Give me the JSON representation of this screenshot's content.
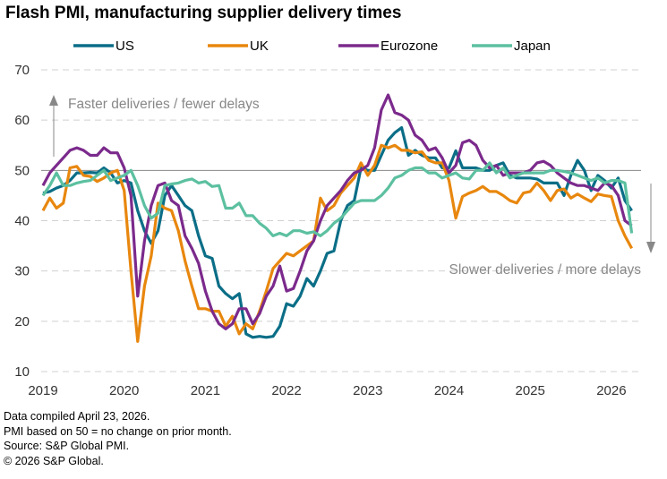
{
  "title": "Flash PMI, manufacturing supplier delivery times",
  "notes": [
    "Data compiled April 23, 2026.",
    "PMI based on 50 = no change on prior month.",
    "Source: S&P Global PMI.",
    "© 2026 S&P Global."
  ],
  "chart_data": {
    "type": "line",
    "title": "Flash PMI, manufacturing supplier delivery times",
    "x_start": "2019-01",
    "frequency": "monthly",
    "xticks": [
      "2019",
      "2020",
      "2021",
      "2022",
      "2023",
      "2024",
      "2025",
      "2026"
    ],
    "yticks": [
      10,
      20,
      30,
      40,
      50,
      60,
      70
    ],
    "ylim": [
      10,
      70
    ],
    "reference_line": 50,
    "annotations": {
      "up": "Faster deliveries / fewer delays",
      "down": "Slower deliveries / more delays"
    },
    "legend_position": "top",
    "series": [
      {
        "name": "US",
        "color": "#0b6e87",
        "values": [
          45.5,
          45.8,
          46.5,
          47,
          48,
          49.5,
          49.5,
          49.6,
          49.5,
          50.5,
          49.5,
          47.5,
          48,
          47.5,
          42,
          38,
          35.5,
          38,
          45,
          47,
          45,
          43,
          42,
          37,
          33,
          32.5,
          27,
          25.5,
          24.5,
          25.5,
          17.5,
          16.8,
          17,
          16.8,
          17,
          19,
          23.5,
          23,
          25,
          28.5,
          27,
          30,
          33.5,
          34,
          40,
          43,
          44,
          50.5,
          50,
          50,
          53,
          56,
          57.5,
          58.5,
          53,
          54,
          53,
          52.5,
          52.5,
          50.5,
          50.5,
          53.9,
          50.5,
          50.5,
          50.5,
          50,
          50,
          51,
          51.5,
          49,
          48.5,
          48.5,
          48.5,
          48.3,
          47.5,
          47.5,
          47.5,
          45,
          49,
          52,
          50,
          46,
          49,
          48,
          46.5,
          48.5,
          44,
          42
        ]
      },
      {
        "name": "UK",
        "color": "#e8870e",
        "values": [
          42,
          44.5,
          42.5,
          43.5,
          50.5,
          50.8,
          49,
          48.8,
          47.8,
          48.5,
          49.5,
          50,
          46,
          30,
          16,
          27,
          33,
          43.5,
          42.5,
          42,
          38,
          32,
          27,
          22.5,
          22.5,
          22,
          22,
          19,
          21,
          17.5,
          19.5,
          18.5,
          22,
          26,
          30.5,
          32,
          33.5,
          33,
          34,
          35,
          36,
          44.5,
          42,
          43,
          45.5,
          47,
          48.5,
          51.5,
          49,
          51,
          55,
          54.5,
          55,
          54,
          54,
          53.5,
          53.7,
          52,
          51.5,
          51.5,
          48,
          40.5,
          44.8,
          45.5,
          46,
          46.8,
          45.8,
          45.8,
          45,
          44,
          43.5,
          45.5,
          45.8,
          47.5,
          46,
          44,
          46,
          46.3,
          44.5,
          45.3,
          44.5,
          43.8,
          45.3,
          45,
          44.8,
          40,
          37,
          34.5
        ]
      },
      {
        "name": "Eurozone",
        "color": "#7b2a8c",
        "values": [
          47,
          49.5,
          51,
          52.5,
          54,
          54.5,
          54,
          53,
          53,
          54.5,
          53.5,
          53.5,
          50.5,
          45,
          25,
          36,
          43,
          47,
          47.5,
          44,
          43,
          37,
          34.5,
          31.5,
          26,
          22,
          19.5,
          18.5,
          19.5,
          22.5,
          22.5,
          19.5,
          21.5,
          25,
          27,
          31,
          26,
          26.5,
          30,
          34,
          36,
          40,
          43,
          44.5,
          46,
          48,
          49.5,
          50,
          51,
          54.5,
          62,
          65,
          61.5,
          61,
          60,
          57,
          56,
          54,
          54.5,
          52.5,
          49.5,
          51,
          55.5,
          56,
          55,
          52,
          50.5,
          51,
          49,
          49.5,
          49.5,
          49.5,
          50,
          51.5,
          51.8,
          51,
          49.5,
          48.5,
          47.5,
          47,
          47,
          46.5,
          46,
          47.5,
          47,
          45,
          40,
          39
        ]
      },
      {
        "name": "Japan",
        "color": "#5cc0a0",
        "values": [
          45,
          47,
          49.5,
          47,
          47,
          47.5,
          47.8,
          48,
          49,
          50,
          48,
          48.5,
          49,
          50,
          47,
          43,
          40.5,
          41.5,
          47,
          47.3,
          47.5,
          48,
          48.3,
          47.5,
          47.8,
          46.8,
          47,
          42.5,
          42.5,
          43.5,
          41,
          41,
          39.5,
          38.5,
          37,
          37.5,
          37,
          38,
          38,
          37.5,
          37.8,
          37,
          38,
          39.5,
          40.5,
          42,
          43.5,
          44,
          44,
          44,
          45,
          46.5,
          48.5,
          49,
          50,
          50.5,
          50.5,
          49.5,
          49.5,
          48.5,
          49,
          49.5,
          48.5,
          48.3,
          50,
          50,
          51.5,
          49.5,
          50.5,
          48.5,
          49,
          49.5,
          49.5,
          49.5,
          49.5,
          50,
          50,
          49.8,
          49.5,
          49,
          48.5,
          48,
          48.5,
          47.5,
          48,
          48,
          47.5,
          37.5
        ]
      }
    ]
  }
}
